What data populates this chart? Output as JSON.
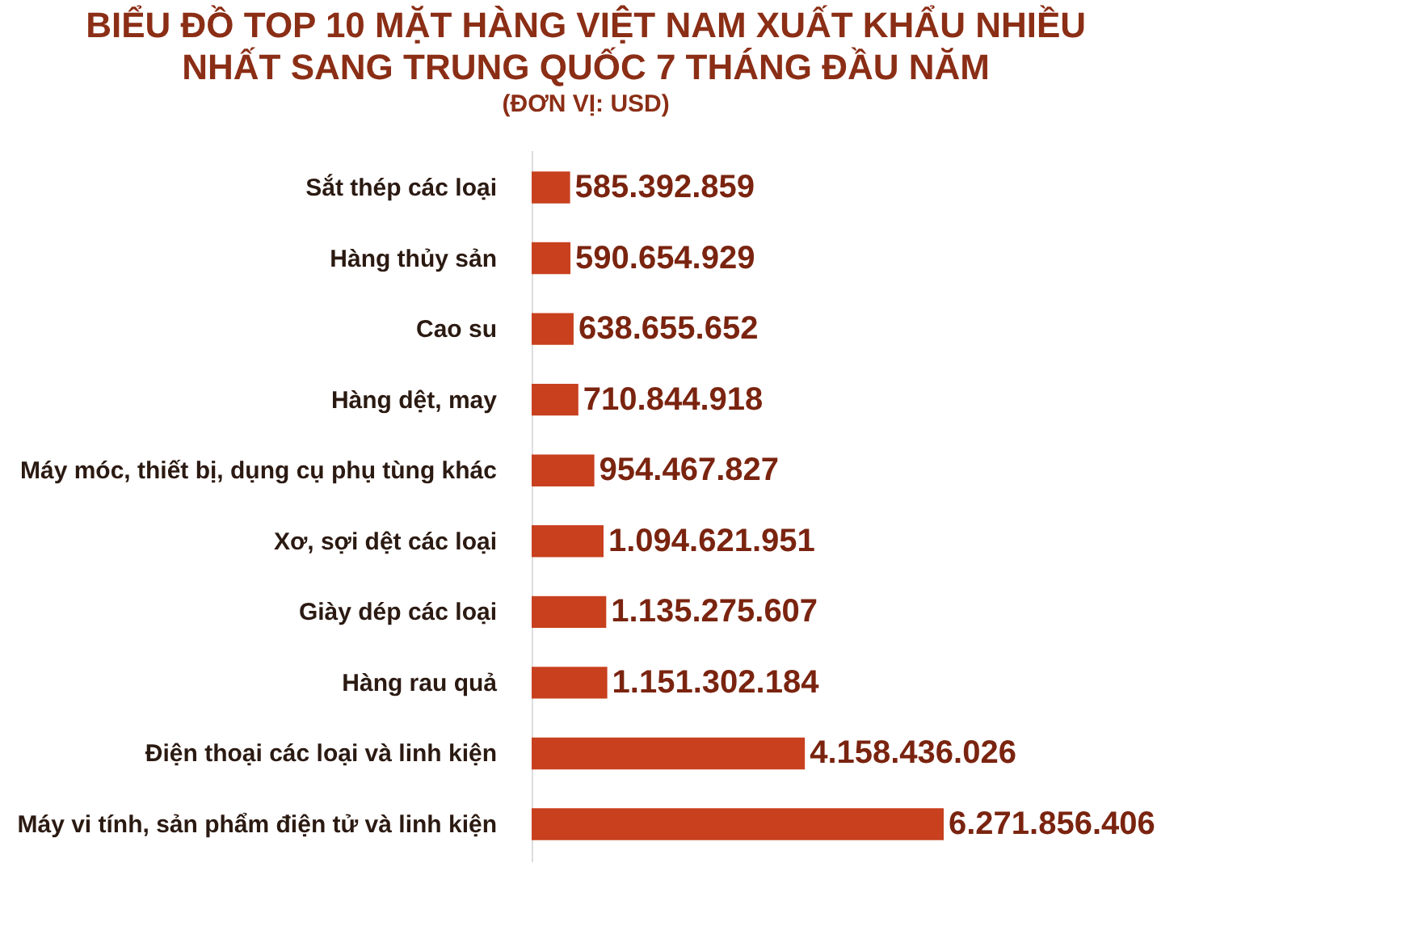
{
  "chart_data": {
    "type": "bar",
    "orientation": "horizontal",
    "title": "BIỂU ĐỒ TOP 10 MẶT HÀNG VIỆT NAM XUẤT KHẨU NHIỀU NHẤT SANG TRUNG QUỐC 7 THÁNG ĐẦU NĂM",
    "subtitle": "(ĐƠN VỊ: USD)",
    "categories": [
      "Sắt thép các loại",
      "Hàng thủy sản",
      "Cao su",
      "Hàng dệt, may",
      "Máy móc, thiết bị, dụng cụ phụ tùng khác",
      "Xơ, sợi dệt các loại",
      "Giày dép các loại",
      "Hàng rau quả",
      "Điện thoại các loại và linh kiện",
      "Máy vi tính, sản phẩm điện tử và linh kiện"
    ],
    "values": [
      585392859,
      590654929,
      638655652,
      710844918,
      954467827,
      1094621951,
      1135275607,
      1151302184,
      4158436026,
      6271856406
    ],
    "value_labels": [
      "585.392.859",
      "590.654.929",
      "638.655.652",
      "710.844.918",
      "954.467.827",
      "1.094.621.951",
      "1.135.275.607",
      "1.151.302.184",
      "4.158.436.026",
      "6.271.856.406"
    ],
    "color": "#c8401e"
  }
}
